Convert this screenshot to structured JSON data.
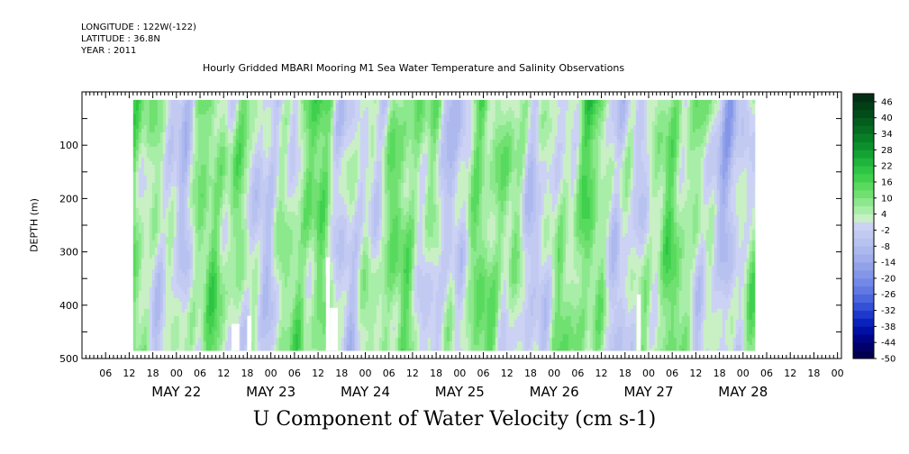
{
  "header": {
    "longitude": "LONGITUDE : 122W(-122)",
    "latitude": "LATITUDE : 36.8N",
    "year": "YEAR : 2011",
    "title": "Hourly Gridded MBARI Mooring M1 Sea Water Temperature and Salinity Observations"
  },
  "chart_data": {
    "type": "heatmap",
    "title": "Hourly Gridded MBARI Mooring M1 Sea Water Temperature and Salinity Observations",
    "xlabel": "U Component of Water Velocity (cm s-1)",
    "ylabel": "DEPTH (m)",
    "x_axis": {
      "start": "2011-05-21T00:00",
      "end": "2011-05-29T01:00",
      "data_start": "2011-05-21T13:00",
      "data_end": "2011-05-28T03:00",
      "hour_tick_labels": [
        "06",
        "12",
        "18",
        "00",
        "06",
        "12",
        "18",
        "00",
        "06",
        "12",
        "18",
        "00",
        "06",
        "12",
        "18",
        "00",
        "06",
        "12",
        "18",
        "00",
        "06",
        "12",
        "18",
        "00",
        "06",
        "12",
        "18",
        "00",
        "06",
        "12",
        "18",
        "00"
      ],
      "day_labels": [
        "MAY 22",
        "MAY 23",
        "MAY 24",
        "MAY 25",
        "MAY 26",
        "MAY 27",
        "MAY 28"
      ]
    },
    "y_axis": {
      "range": [
        500,
        0
      ],
      "reversed": true,
      "tick_labels": [
        "100",
        "200",
        "300",
        "400",
        "500"
      ],
      "data_top_depth": 15,
      "data_bottom_depth": 485
    },
    "colorbar": {
      "labels": [
        "46",
        "40",
        "34",
        "28",
        "22",
        "16",
        "10",
        "4",
        "-2",
        "-8",
        "-14",
        "-20",
        "-26",
        "-32",
        "-38",
        "-44",
        "-50"
      ],
      "levels": [
        -50,
        -47,
        -44,
        -41,
        -38,
        -35,
        -32,
        -29,
        -26,
        -23,
        -20,
        -17,
        -14,
        -11,
        -8,
        -5,
        -2,
        1,
        4,
        7,
        10,
        13,
        16,
        19,
        22,
        25,
        28,
        31,
        34,
        37,
        40,
        43,
        46,
        49
      ],
      "colors": [
        "#000050",
        "#00006a",
        "#000488",
        "#0010a4",
        "#0a22bc",
        "#1e38cc",
        "#3450d6",
        "#4c66de",
        "#6278e2",
        "#7488e6",
        "#8496e8",
        "#92a2ea",
        "#a0aeec",
        "#acb8ee",
        "#b8c2f0",
        "#c2caf2",
        "#ccd2f4",
        "#c8f0c4",
        "#a8eea8",
        "#8ce88c",
        "#70e070",
        "#58da5e",
        "#40d04e",
        "#2ec444",
        "#20b43c",
        "#14a234",
        "#0c902c",
        "#087e26",
        "#066c22",
        "#045c1e",
        "#034c1a",
        "#033e16",
        "#023014"
      ]
    },
    "missing_data": [
      {
        "from": "2011-05-22T14:00",
        "to": "2011-05-22T16:00",
        "depth_from": 435,
        "depth_to": 485
      },
      {
        "from": "2011-05-22T18:00",
        "to": "2011-05-22T19:00",
        "depth_from": 420,
        "depth_to": 485
      },
      {
        "from": "2011-05-23T14:00",
        "to": "2011-05-23T15:00",
        "depth_from": 310,
        "depth_to": 485
      },
      {
        "from": "2011-05-23T15:00",
        "to": "2011-05-23T17:00",
        "depth_from": 405,
        "depth_to": 485
      },
      {
        "from": "2011-05-26T21:00",
        "to": "2011-05-26T22:00",
        "depth_from": 380,
        "depth_to": 485
      }
    ]
  }
}
